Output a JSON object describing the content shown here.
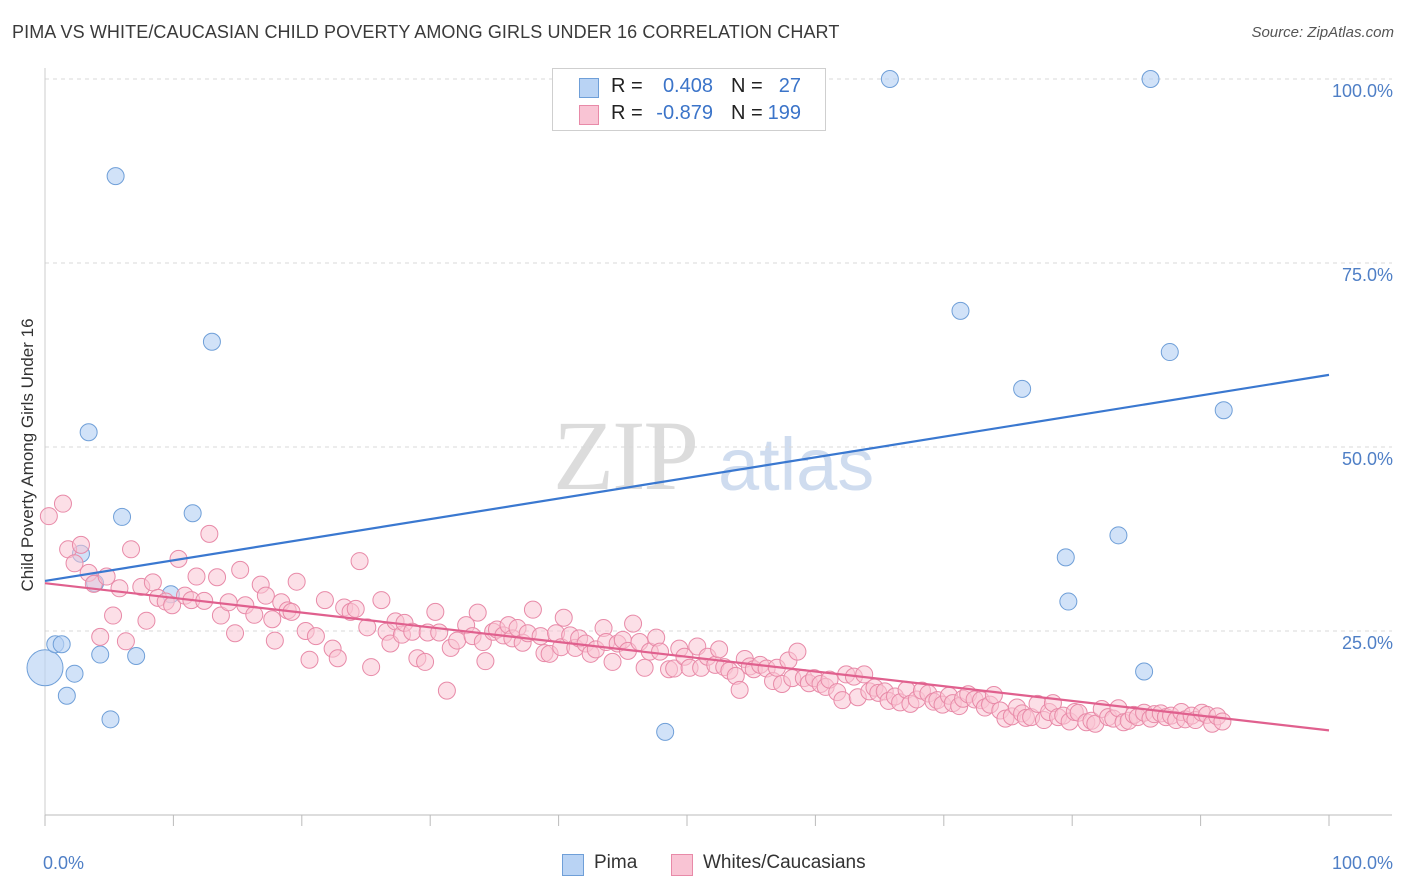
{
  "title": "PIMA VS WHITE/CAUCASIAN CHILD POVERTY AMONG GIRLS UNDER 16 CORRELATION CHART",
  "source": "Source: ZipAtlas.com",
  "watermark": {
    "zip": "ZIP",
    "atlas": "atlas"
  },
  "legend": {
    "r_label": "R =",
    "n_label": "N =",
    "rows": [
      {
        "swatch_fill": "#b9d3f4",
        "swatch_stroke": "#6f9fd8",
        "r": "0.408",
        "n": "27"
      },
      {
        "swatch_fill": "#f9c4d4",
        "swatch_stroke": "#e88aa8",
        "r": "-0.879",
        "n": "199"
      }
    ]
  },
  "bottom_legend": [
    "Pima",
    "Whites/Caucasians"
  ],
  "colors": {
    "pima_fill": "#b9d3f4",
    "pima_stroke": "#6f9fd8",
    "pima_line": "#3a78d0",
    "white_fill": "#f9c4d4",
    "white_stroke": "#e88aa8",
    "white_line": "#e0608e",
    "tick_text": "#4f7fc6",
    "grid": "#d8d8d8"
  },
  "chart_data": {
    "type": "scatter",
    "title": "PIMA VS WHITE/CAUCASIAN CHILD POVERTY AMONG GIRLS UNDER 16 CORRELATION CHART",
    "xlabel": "",
    "ylabel": "Child Poverty Among Girls Under 16",
    "xlim": [
      0,
      100
    ],
    "ylim": [
      0,
      100
    ],
    "x_tick_labels": [
      "0.0%",
      "100.0%"
    ],
    "y_tick_labels": [
      "25.0%",
      "50.0%",
      "75.0%",
      "100.0%"
    ],
    "y_ticks": [
      25,
      50,
      75,
      100
    ],
    "grid": true,
    "legend_position": "top-center",
    "series": [
      {
        "name": "Pima",
        "r": 0.408,
        "n": 27,
        "trend": [
          [
            0,
            31.8
          ],
          [
            100,
            59.8
          ]
        ],
        "points": [
          [
            0.0,
            20.0,
            "large"
          ],
          [
            0.8,
            23.2
          ],
          [
            1.3,
            23.2
          ],
          [
            1.7,
            16.2
          ],
          [
            2.3,
            19.2
          ],
          [
            2.8,
            35.5
          ],
          [
            3.4,
            52.0
          ],
          [
            3.9,
            31.5
          ],
          [
            4.3,
            21.8
          ],
          [
            5.1,
            13.0
          ],
          [
            5.5,
            86.8
          ],
          [
            6.0,
            40.5
          ],
          [
            7.1,
            21.6
          ],
          [
            9.8,
            30.0
          ],
          [
            11.5,
            41.0
          ],
          [
            13.0,
            64.3
          ],
          [
            48.3,
            11.3
          ],
          [
            65.8,
            100.0
          ],
          [
            71.3,
            68.5
          ],
          [
            76.1,
            57.9
          ],
          [
            79.5,
            35.0
          ],
          [
            79.7,
            29.0
          ],
          [
            83.6,
            38.0
          ],
          [
            85.6,
            19.5
          ],
          [
            86.1,
            100.0
          ],
          [
            87.6,
            62.9
          ],
          [
            91.8,
            55.0
          ]
        ]
      },
      {
        "name": "Whites/Caucasians",
        "r": -0.879,
        "n": 199,
        "trend": [
          [
            0,
            31.5
          ],
          [
            100,
            11.5
          ]
        ],
        "points": [
          [
            0.3,
            40.6
          ],
          [
            1.4,
            42.3
          ],
          [
            1.8,
            36.1
          ],
          [
            2.3,
            34.2
          ],
          [
            2.8,
            36.7
          ],
          [
            3.4,
            32.9
          ],
          [
            3.8,
            31.4
          ],
          [
            4.3,
            24.2
          ],
          [
            4.8,
            32.4
          ],
          [
            5.3,
            27.1
          ],
          [
            5.8,
            30.8
          ],
          [
            6.3,
            23.6
          ],
          [
            6.7,
            36.1
          ],
          [
            7.5,
            31.0
          ],
          [
            7.9,
            26.4
          ],
          [
            8.4,
            31.6
          ],
          [
            8.8,
            29.5
          ],
          [
            9.4,
            29.0
          ],
          [
            9.9,
            28.5
          ],
          [
            10.4,
            34.8
          ],
          [
            10.9,
            29.8
          ],
          [
            11.4,
            29.2
          ],
          [
            11.8,
            32.4
          ],
          [
            12.4,
            29.1
          ],
          [
            12.8,
            38.2
          ],
          [
            13.4,
            32.3
          ],
          [
            13.7,
            27.1
          ],
          [
            14.3,
            28.9
          ],
          [
            14.8,
            24.7
          ],
          [
            15.2,
            33.3
          ],
          [
            15.6,
            28.5
          ],
          [
            16.3,
            27.2
          ],
          [
            16.8,
            31.3
          ],
          [
            17.2,
            29.8
          ],
          [
            17.7,
            26.6
          ],
          [
            17.9,
            23.7
          ],
          [
            18.4,
            28.9
          ],
          [
            18.9,
            27.8
          ],
          [
            19.2,
            27.6
          ],
          [
            19.6,
            31.7
          ],
          [
            20.3,
            25.0
          ],
          [
            20.6,
            21.1
          ],
          [
            21.1,
            24.3
          ],
          [
            21.8,
            29.2
          ],
          [
            22.4,
            22.6
          ],
          [
            22.8,
            21.3
          ],
          [
            23.3,
            28.2
          ],
          [
            23.8,
            27.6
          ],
          [
            24.2,
            28.0
          ],
          [
            24.5,
            34.5
          ],
          [
            25.1,
            25.5
          ],
          [
            25.4,
            20.1
          ],
          [
            26.2,
            29.2
          ],
          [
            26.6,
            24.9
          ],
          [
            26.9,
            23.3
          ],
          [
            27.3,
            26.3
          ],
          [
            27.8,
            24.5
          ],
          [
            28.0,
            26.1
          ],
          [
            28.6,
            24.9
          ],
          [
            29.0,
            21.3
          ],
          [
            29.6,
            20.8
          ],
          [
            29.8,
            24.8
          ],
          [
            30.4,
            27.6
          ],
          [
            30.7,
            24.8
          ],
          [
            31.3,
            16.9
          ],
          [
            31.6,
            22.7
          ],
          [
            32.1,
            23.7
          ],
          [
            32.8,
            25.8
          ],
          [
            33.3,
            24.3
          ],
          [
            33.7,
            27.5
          ],
          [
            34.1,
            23.5
          ],
          [
            34.3,
            20.9
          ],
          [
            34.9,
            24.9
          ],
          [
            35.2,
            25.2
          ],
          [
            35.7,
            24.4
          ],
          [
            36.1,
            25.8
          ],
          [
            36.4,
            24.0
          ],
          [
            36.8,
            25.4
          ],
          [
            37.2,
            23.4
          ],
          [
            37.6,
            24.7
          ],
          [
            38.0,
            27.9
          ],
          [
            38.6,
            24.3
          ],
          [
            38.9,
            22.0
          ],
          [
            39.3,
            21.9
          ],
          [
            39.8,
            24.7
          ],
          [
            40.2,
            22.8
          ],
          [
            40.4,
            26.8
          ],
          [
            40.9,
            24.4
          ],
          [
            41.3,
            22.7
          ],
          [
            41.6,
            24.0
          ],
          [
            42.1,
            23.3
          ],
          [
            42.5,
            21.9
          ],
          [
            42.9,
            22.5
          ],
          [
            43.5,
            25.4
          ],
          [
            43.7,
            23.5
          ],
          [
            44.2,
            20.8
          ],
          [
            44.6,
            23.3
          ],
          [
            45.0,
            23.8
          ],
          [
            45.4,
            22.3
          ],
          [
            45.8,
            26.0
          ],
          [
            46.3,
            23.5
          ],
          [
            46.7,
            20.0
          ],
          [
            47.1,
            22.2
          ],
          [
            47.6,
            24.1
          ],
          [
            47.9,
            22.2
          ],
          [
            48.6,
            19.8
          ],
          [
            49.0,
            19.9
          ],
          [
            49.4,
            22.6
          ],
          [
            49.8,
            21.5
          ],
          [
            50.2,
            20.0
          ],
          [
            50.8,
            22.9
          ],
          [
            51.1,
            20.0
          ],
          [
            51.6,
            21.5
          ],
          [
            52.2,
            20.4
          ],
          [
            52.5,
            22.5
          ],
          [
            52.9,
            20.1
          ],
          [
            53.3,
            19.6
          ],
          [
            53.8,
            18.9
          ],
          [
            54.1,
            17.0
          ],
          [
            54.5,
            21.2
          ],
          [
            54.9,
            20.2
          ],
          [
            55.2,
            19.8
          ],
          [
            55.7,
            20.4
          ],
          [
            56.2,
            19.9
          ],
          [
            56.7,
            18.2
          ],
          [
            57.0,
            20.0
          ],
          [
            57.4,
            17.8
          ],
          [
            57.9,
            21.0
          ],
          [
            58.2,
            18.6
          ],
          [
            58.6,
            22.2
          ],
          [
            59.1,
            18.6
          ],
          [
            59.5,
            17.9
          ],
          [
            59.9,
            18.6
          ],
          [
            60.4,
            17.8
          ],
          [
            60.8,
            17.4
          ],
          [
            61.1,
            18.4
          ],
          [
            61.7,
            16.7
          ],
          [
            62.1,
            15.6
          ],
          [
            62.4,
            19.1
          ],
          [
            63.0,
            18.8
          ],
          [
            63.3,
            16.0
          ],
          [
            63.8,
            19.1
          ],
          [
            64.2,
            16.8
          ],
          [
            64.6,
            17.3
          ],
          [
            64.9,
            16.6
          ],
          [
            65.4,
            16.8
          ],
          [
            65.7,
            15.5
          ],
          [
            66.2,
            16.1
          ],
          [
            66.6,
            15.3
          ],
          [
            67.1,
            17.0
          ],
          [
            67.4,
            15.1
          ],
          [
            67.9,
            15.7
          ],
          [
            68.3,
            16.9
          ],
          [
            68.8,
            16.5
          ],
          [
            69.2,
            15.4
          ],
          [
            69.5,
            15.6
          ],
          [
            69.9,
            15.0
          ],
          [
            70.4,
            16.2
          ],
          [
            70.7,
            15.2
          ],
          [
            71.2,
            14.8
          ],
          [
            71.5,
            15.8
          ],
          [
            71.9,
            16.4
          ],
          [
            72.4,
            15.7
          ],
          [
            72.9,
            15.6
          ],
          [
            73.2,
            14.6
          ],
          [
            73.6,
            15.0
          ],
          [
            73.9,
            16.3
          ],
          [
            74.4,
            14.2
          ],
          [
            74.8,
            13.1
          ],
          [
            75.3,
            13.4
          ],
          [
            75.7,
            14.6
          ],
          [
            76.1,
            13.8
          ],
          [
            76.4,
            13.2
          ],
          [
            76.8,
            13.3
          ],
          [
            77.3,
            15.1
          ],
          [
            77.8,
            12.9
          ],
          [
            78.2,
            14.0
          ],
          [
            78.5,
            15.2
          ],
          [
            78.9,
            13.3
          ],
          [
            79.3,
            13.5
          ],
          [
            79.8,
            12.7
          ],
          [
            80.2,
            14.0
          ],
          [
            80.5,
            13.9
          ],
          [
            81.1,
            12.6
          ],
          [
            81.5,
            12.8
          ],
          [
            81.8,
            12.4
          ],
          [
            82.3,
            14.4
          ],
          [
            82.8,
            13.3
          ],
          [
            83.2,
            13.1
          ],
          [
            83.6,
            14.5
          ],
          [
            84.0,
            12.6
          ],
          [
            84.4,
            12.8
          ],
          [
            84.8,
            13.6
          ],
          [
            85.1,
            13.3
          ],
          [
            85.6,
            13.9
          ],
          [
            86.1,
            13.1
          ],
          [
            86.4,
            13.7
          ],
          [
            86.9,
            13.8
          ],
          [
            87.3,
            13.3
          ],
          [
            87.7,
            13.5
          ],
          [
            88.1,
            12.9
          ],
          [
            88.5,
            14.0
          ],
          [
            88.8,
            13.0
          ],
          [
            89.3,
            13.5
          ],
          [
            89.6,
            12.9
          ],
          [
            90.1,
            13.9
          ],
          [
            90.5,
            13.6
          ],
          [
            90.9,
            12.4
          ],
          [
            91.3,
            13.4
          ],
          [
            91.7,
            12.7
          ]
        ]
      }
    ]
  }
}
